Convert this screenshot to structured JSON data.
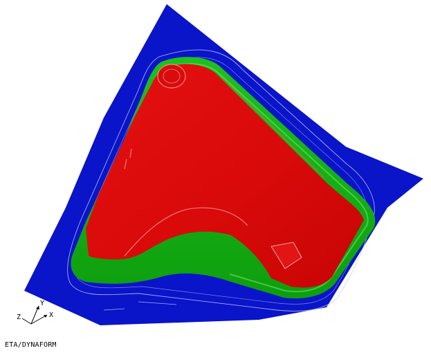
{
  "app": {
    "brand": "ETA/DYNAFORM"
  },
  "viewport": {
    "background": "#ffffff",
    "colors": {
      "binder": "#0a14c8",
      "flange": "#12b312",
      "punch": "#e10a0a",
      "outline_line": "#c8d2ff"
    }
  },
  "triad": {
    "x_label": "X",
    "y_label": "Y",
    "z_label": "Z"
  }
}
